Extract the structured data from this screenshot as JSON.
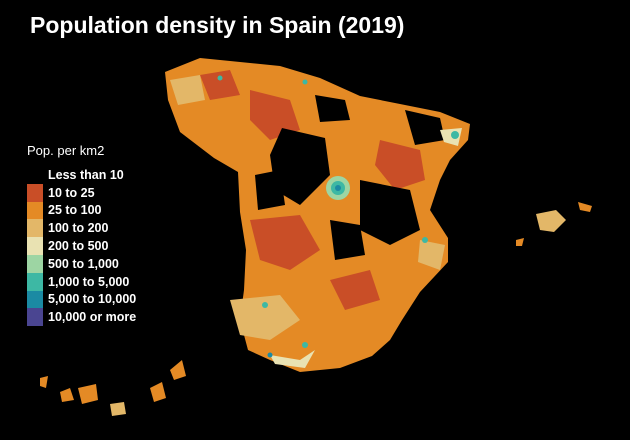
{
  "title": "Population density in Spain (2019)",
  "legend": {
    "title": "Pop. per km2",
    "items": [
      {
        "label": "Less than 10",
        "color": "#000000"
      },
      {
        "label": "10 to 25",
        "color": "#c94e27"
      },
      {
        "label": "25 to 100",
        "color": "#e48a25"
      },
      {
        "label": "100 to 200",
        "color": "#e3b768"
      },
      {
        "label": "200 to 500",
        "color": "#e9e2b2"
      },
      {
        "label": "500 to 1,000",
        "color": "#9dd5a3"
      },
      {
        "label": "1,000 to 5,000",
        "color": "#3db8a4"
      },
      {
        "label": "5,000 to 10,000",
        "color": "#1b8aa3"
      },
      {
        "label": "10,000 or more",
        "color": "#4a4591"
      }
    ]
  }
}
